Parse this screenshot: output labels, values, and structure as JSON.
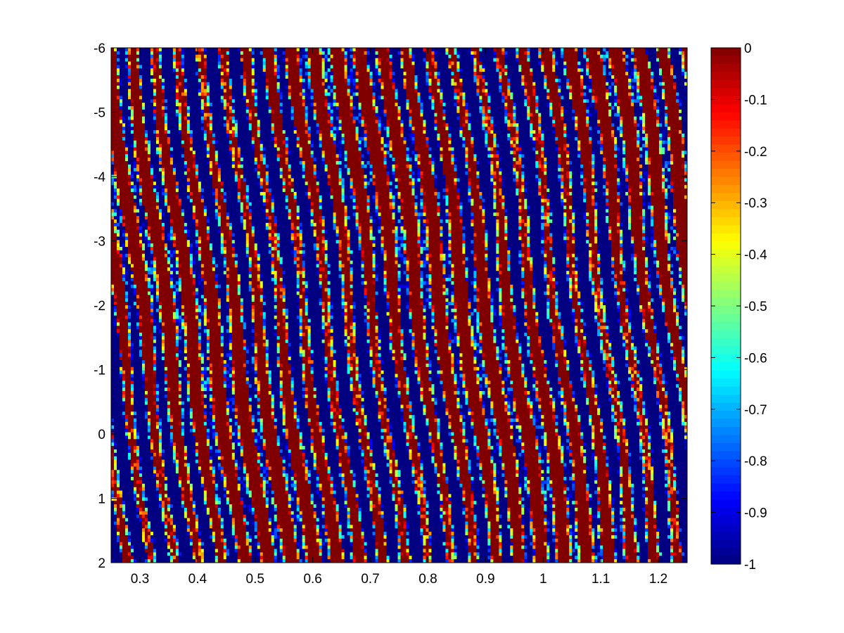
{
  "chart_data": {
    "type": "heatmap",
    "title": "",
    "xlabel": "",
    "ylabel": "",
    "xlim": [
      0.25,
      1.25
    ],
    "ylim": [
      -6,
      2
    ],
    "y_direction": "reversed",
    "x_ticks": [
      0.3,
      0.4,
      0.5,
      0.6,
      0.7,
      0.8,
      0.9,
      1,
      1.1,
      1.2
    ],
    "x_tick_labels": [
      "0.3",
      "0.4",
      "0.5",
      "0.6",
      "0.7",
      "0.8",
      "0.9",
      "1",
      "1.1",
      "1.2"
    ],
    "y_ticks": [
      -6,
      -5,
      -4,
      -3,
      -2,
      -1,
      0,
      1,
      2
    ],
    "y_tick_labels": [
      "-6",
      "-5",
      "-4",
      "-3",
      "-2",
      "-1",
      "0",
      "1",
      "2"
    ],
    "colorbar": {
      "colormap": "jet",
      "clim": [
        -1,
        0
      ],
      "ticks": [
        0,
        -0.1,
        -0.2,
        -0.3,
        -0.4,
        -0.5,
        -0.6,
        -0.7,
        -0.8,
        -0.9,
        -1
      ],
      "tick_labels": [
        "0",
        "-0.1",
        "-0.2",
        "-0.3",
        "-0.4",
        "-0.5",
        "-0.6",
        "-0.7",
        "-0.8",
        "-0.9",
        "-1"
      ]
    },
    "grid": false,
    "pattern_description_values": {
      "dominant_values": [
        0,
        -1
      ],
      "stripe_orientation": "near-vertical, tilted toward upper-right"
    }
  }
}
